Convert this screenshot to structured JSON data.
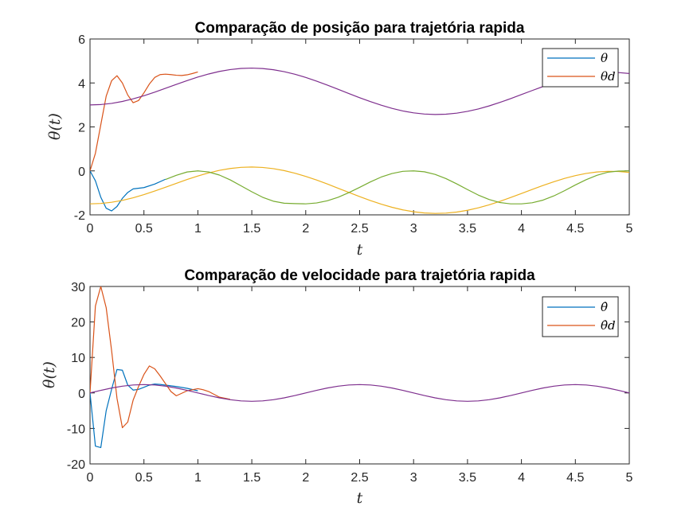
{
  "chart_data": [
    {
      "type": "line",
      "title": "Comparação de posição para trajetória rapida",
      "xlabel": "t",
      "ylabel": "θ(t)",
      "xlim": [
        0,
        5
      ],
      "ylim": [
        -2,
        6
      ],
      "xticks": [
        0,
        0.5,
        1,
        1.5,
        2,
        2.5,
        3,
        3.5,
        4,
        4.5,
        5
      ],
      "yticks": [
        -2,
        0,
        2,
        4,
        6
      ],
      "grid": false,
      "legend": {
        "placement": "top-right",
        "entries": [
          {
            "label": "θ",
            "color": "#0072BD"
          },
          {
            "label": "θd",
            "color": "#D95319"
          }
        ]
      },
      "series": [
        {
          "color": "#0072BD",
          "x": [
            0,
            0.05,
            0.1,
            0.15,
            0.2,
            0.25,
            0.3,
            0.35,
            0.4,
            0.5,
            0.6,
            0.7
          ],
          "y": [
            0,
            -0.45,
            -1.2,
            -1.7,
            -1.82,
            -1.62,
            -1.25,
            -0.98,
            -0.82,
            -0.76,
            -0.6,
            -0.38
          ]
        },
        {
          "color": "#D95319",
          "x": [
            0,
            0.05,
            0.1,
            0.15,
            0.2,
            0.25,
            0.3,
            0.35,
            0.4,
            0.45,
            0.5,
            0.55,
            0.6,
            0.65,
            0.7,
            0.75,
            0.8,
            0.85,
            0.9,
            0.95,
            1.0
          ],
          "y": [
            0,
            0.8,
            2.1,
            3.4,
            4.1,
            4.33,
            4.0,
            3.45,
            3.1,
            3.2,
            3.55,
            3.95,
            4.25,
            4.38,
            4.4,
            4.38,
            4.35,
            4.34,
            4.37,
            4.43,
            4.5
          ]
        },
        {
          "color": "#7E2F8E",
          "x": [
            0,
            0.1,
            0.2,
            0.3,
            0.4,
            0.5,
            0.6,
            0.7,
            0.8,
            0.9,
            1.0,
            1.1,
            1.2,
            1.3,
            1.4,
            1.5,
            1.6,
            1.7,
            1.8,
            1.9,
            2.0,
            2.1,
            2.2,
            2.3,
            2.4,
            2.5,
            2.6,
            2.7,
            2.8,
            2.9,
            3.0,
            3.1,
            3.2,
            3.3,
            3.4,
            3.5,
            3.6,
            3.7,
            3.8,
            3.9,
            4.0,
            4.1,
            4.2,
            4.3,
            4.4,
            4.5,
            4.6,
            4.7,
            4.8,
            4.9,
            5.0
          ],
          "y": [
            3.0,
            3.018,
            3.071,
            3.159,
            3.277,
            3.42,
            3.582,
            3.756,
            3.934,
            4.107,
            4.268,
            4.408,
            4.524,
            4.609,
            4.66,
            4.676,
            4.656,
            4.601,
            4.513,
            4.395,
            4.25,
            4.084,
            3.903,
            3.712,
            3.519,
            3.33,
            3.151,
            2.987,
            2.844,
            2.727,
            2.64,
            2.586,
            2.565,
            2.579,
            2.627,
            2.708,
            2.818,
            2.955,
            3.114,
            3.288,
            3.471,
            3.656,
            3.837,
            4.006,
            4.157,
            4.285,
            4.384,
            4.45,
            4.48,
            4.473,
            4.43
          ]
        },
        {
          "color": "#EDB120",
          "x": [
            0,
            0.1,
            0.2,
            0.3,
            0.4,
            0.5,
            0.6,
            0.7,
            0.8,
            0.9,
            1.0,
            1.1,
            1.2,
            1.3,
            1.4,
            1.5,
            1.6,
            1.7,
            1.8,
            1.9,
            2.0,
            2.1,
            2.2,
            2.3,
            2.4,
            2.5,
            2.6,
            2.7,
            2.8,
            2.9,
            3.0,
            3.1,
            3.2,
            3.3,
            3.4,
            3.5,
            3.6,
            3.7,
            3.8,
            3.9,
            4.0,
            4.1,
            4.2,
            4.3,
            4.4,
            4.5,
            4.6,
            4.7,
            4.8,
            4.9,
            5.0
          ],
          "y": [
            -1.5,
            -1.482,
            -1.428,
            -1.341,
            -1.223,
            -1.08,
            -0.918,
            -0.744,
            -0.566,
            -0.393,
            -0.232,
            -0.092,
            0.024,
            0.109,
            0.16,
            0.176,
            0.156,
            0.101,
            0.013,
            -0.105,
            -0.25,
            -0.416,
            -0.597,
            -0.788,
            -0.981,
            -1.17,
            -1.349,
            -1.513,
            -1.656,
            -1.773,
            -1.86,
            -1.914,
            -1.935,
            -1.921,
            -1.873,
            -1.792,
            -1.682,
            -1.545,
            -1.386,
            -1.212,
            -1.029,
            -0.844,
            -0.663,
            -0.494,
            -0.343,
            -0.215,
            -0.116,
            -0.05,
            -0.02,
            -0.027,
            -0.07
          ]
        },
        {
          "color": "#77AC30",
          "x": [
            0.7,
            0.8,
            0.9,
            1.0,
            1.1,
            1.2,
            1.3,
            1.4,
            1.5,
            1.6,
            1.7,
            1.8,
            1.9,
            2.0,
            2.1,
            2.2,
            2.3,
            2.4,
            2.5,
            2.6,
            2.7,
            2.8,
            2.9,
            3.0,
            3.1,
            3.2,
            3.3,
            3.4,
            3.5,
            3.6,
            3.7,
            3.8,
            3.9,
            4.0,
            4.1,
            4.2,
            4.3,
            4.4,
            4.5,
            4.6,
            4.7,
            4.8,
            4.9,
            5.0
          ],
          "y": [
            -0.39,
            -0.2,
            -0.05,
            0.0,
            -0.05,
            -0.19,
            -0.41,
            -0.68,
            -0.95,
            -1.2,
            -1.38,
            -1.47,
            -1.49,
            -1.5,
            -1.46,
            -1.36,
            -1.2,
            -0.99,
            -0.75,
            -0.5,
            -0.28,
            -0.12,
            -0.02,
            0.0,
            -0.04,
            -0.16,
            -0.35,
            -0.59,
            -0.85,
            -1.1,
            -1.3,
            -1.44,
            -1.5,
            -1.5,
            -1.45,
            -1.33,
            -1.14,
            -0.9,
            -0.64,
            -0.4,
            -0.2,
            -0.06,
            -0.01,
            0.0
          ]
        }
      ]
    },
    {
      "type": "line",
      "title": "Comparação de velocidade para trajetória rapida",
      "xlabel": "t",
      "ylabel": "θ(t)",
      "xlim": [
        0,
        5
      ],
      "ylim": [
        -20,
        30
      ],
      "xticks": [
        0,
        0.5,
        1,
        1.5,
        2,
        2.5,
        3,
        3.5,
        4,
        4.5,
        5
      ],
      "yticks": [
        -20,
        -10,
        0,
        10,
        20,
        30
      ],
      "grid": false,
      "legend": {
        "placement": "top-right",
        "entries": [
          {
            "label": "θ̇",
            "color": "#0072BD"
          },
          {
            "label": "θ̇d",
            "color": "#D95319"
          }
        ]
      },
      "series": [
        {
          "color": "#0072BD",
          "x": [
            0,
            0.05,
            0.1,
            0.15,
            0.2,
            0.25,
            0.3,
            0.35,
            0.4,
            0.45,
            0.5,
            0.55,
            0.6,
            0.65,
            0.7,
            0.8,
            0.9,
            1.0
          ],
          "y": [
            0,
            -15.0,
            -15.4,
            -5.0,
            1.0,
            6.6,
            6.4,
            2.2,
            0.8,
            1.0,
            1.6,
            2.2,
            2.5,
            2.4,
            2.2,
            1.8,
            1.3,
            0.6
          ]
        },
        {
          "color": "#D95319",
          "x": [
            0,
            0.05,
            0.1,
            0.15,
            0.2,
            0.25,
            0.3,
            0.35,
            0.4,
            0.45,
            0.5,
            0.55,
            0.6,
            0.65,
            0.7,
            0.75,
            0.8,
            0.9,
            1.0,
            1.05,
            1.1,
            1.2,
            1.3
          ],
          "y": [
            0,
            24.5,
            30.0,
            24.0,
            12.0,
            -1.5,
            -9.8,
            -8.2,
            -2.0,
            1.8,
            5.2,
            7.6,
            6.8,
            4.8,
            2.6,
            0.4,
            -0.8,
            0.6,
            1.2,
            0.9,
            0.4,
            -1.2,
            -1.8
          ]
        },
        {
          "color": "#7E2F8E",
          "x": [
            0,
            0.1,
            0.2,
            0.3,
            0.4,
            0.5,
            0.6,
            0.7,
            0.8,
            0.9,
            1.0,
            1.1,
            1.2,
            1.3,
            1.4,
            1.5,
            1.6,
            1.7,
            1.8,
            1.9,
            2.0,
            2.1,
            2.2,
            2.3,
            2.4,
            2.5,
            2.6,
            2.7,
            2.8,
            2.9,
            3.0,
            3.1,
            3.2,
            3.3,
            3.4,
            3.5,
            3.6,
            3.7,
            3.8,
            3.9,
            4.0,
            4.1,
            4.2,
            4.3,
            4.4,
            4.5,
            4.6,
            4.7,
            4.8,
            4.9,
            5.0
          ],
          "y": [
            0,
            0.728,
            1.385,
            1.906,
            2.241,
            2.356,
            2.241,
            1.906,
            1.385,
            0.728,
            0,
            -0.728,
            -1.385,
            -1.906,
            -2.241,
            -2.356,
            -2.241,
            -1.906,
            -1.385,
            -0.728,
            0,
            0.728,
            1.385,
            1.906,
            2.241,
            2.356,
            2.241,
            1.906,
            1.385,
            0.728,
            0,
            -0.728,
            -1.385,
            -1.906,
            -2.241,
            -2.356,
            -2.241,
            -1.906,
            -1.385,
            -0.728,
            0,
            0.728,
            1.385,
            1.906,
            2.241,
            2.356,
            2.241,
            1.906,
            1.385,
            0.728,
            0
          ]
        }
      ]
    }
  ]
}
